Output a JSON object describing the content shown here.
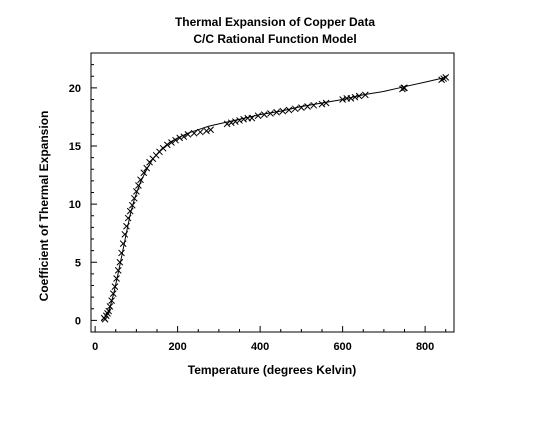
{
  "chart_data": {
    "type": "scatter",
    "title": "Thermal Expansion of Copper Data",
    "subtitle": "C/C Rational Function Model",
    "xlabel": "Temperature (degrees Kelvin)",
    "ylabel": "Coefficient of Thermal Expansion",
    "xlim": [
      -10,
      870
    ],
    "ylim": [
      -1,
      23
    ],
    "xticks": [
      0,
      200,
      400,
      600,
      800
    ],
    "yticks": [
      0,
      5,
      10,
      15,
      20
    ],
    "grid": false,
    "legend": "none",
    "marker": "x",
    "series": [
      {
        "values_x": [
          22,
          24,
          27,
          30,
          33,
          36,
          40,
          44,
          48,
          52,
          56,
          60,
          64,
          68,
          72,
          76,
          80,
          85,
          90,
          95,
          100,
          105,
          110,
          118,
          125,
          132,
          140,
          148,
          156,
          165,
          175,
          185,
          195,
          205,
          215,
          225,
          240,
          255,
          270,
          280,
          320,
          330,
          340,
          350,
          360,
          370,
          380,
          395,
          410,
          425,
          440,
          455,
          470,
          485,
          500,
          515,
          530,
          550,
          560,
          600,
          610,
          620,
          630,
          640,
          655,
          745,
          748,
          750,
          840,
          845,
          850
        ],
        "values_y": [
          0.2,
          0.1,
          0.4,
          0.6,
          0.8,
          1.2,
          1.7,
          2.3,
          2.9,
          3.6,
          4.3,
          5.0,
          5.8,
          6.6,
          7.4,
          8.1,
          8.8,
          9.4,
          9.9,
          10.5,
          11.1,
          11.6,
          12.1,
          12.7,
          13.1,
          13.6,
          13.9,
          14.2,
          14.5,
          14.8,
          15.1,
          15.3,
          15.5,
          15.7,
          15.8,
          16.0,
          16.1,
          16.2,
          16.3,
          16.4,
          16.9,
          17.0,
          17.1,
          17.2,
          17.3,
          17.4,
          17.4,
          17.6,
          17.7,
          17.8,
          17.9,
          18.0,
          18.1,
          18.2,
          18.3,
          18.4,
          18.5,
          18.6,
          18.7,
          19.0,
          19.1,
          19.1,
          19.2,
          19.3,
          19.4,
          19.9,
          20.0,
          20.0,
          20.7,
          20.8,
          20.9
        ]
      }
    ],
    "fit": {
      "values_x": [
        15,
        25,
        35,
        45,
        55,
        65,
        75,
        85,
        95,
        110,
        125,
        140,
        160,
        180,
        200,
        225,
        250,
        275,
        300,
        350,
        400,
        450,
        500,
        550,
        600,
        650,
        700,
        750,
        800,
        850
      ],
      "values_y": [
        0.0,
        0.3,
        1.0,
        2.3,
        3.9,
        5.6,
        7.4,
        9.1,
        10.4,
        11.9,
        13.0,
        13.9,
        14.7,
        15.3,
        15.7,
        16.1,
        16.4,
        16.7,
        16.9,
        17.3,
        17.7,
        18.0,
        18.4,
        18.7,
        19.0,
        19.4,
        19.7,
        20.1,
        20.5,
        20.9
      ]
    }
  }
}
